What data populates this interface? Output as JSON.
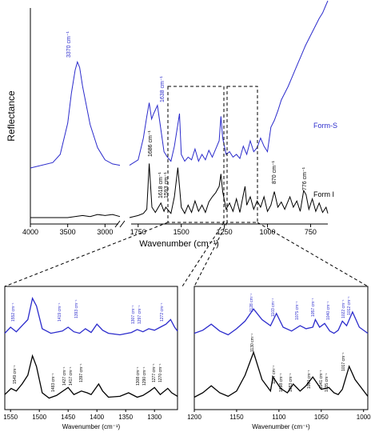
{
  "colors": {
    "form_s": "#2b2bcc",
    "form_i": "#000000",
    "axis": "#000000",
    "dash": "#000000"
  },
  "chart_data": [
    {
      "type": "line",
      "panel": "main",
      "xlabel": "Wavenumber (cm⁻¹)",
      "ylabel": "Reflectance",
      "x_break": [
        2800,
        1800
      ],
      "xticks": [
        "4000",
        "3500",
        "3000",
        "1750",
        "1500",
        "1250",
        "1000",
        "750"
      ],
      "series": [
        {
          "name": "Form-S",
          "color": "#2b2bcc",
          "x": [
            4000,
            3700,
            3600,
            3500,
            3450,
            3400,
            3370,
            3340,
            3300,
            3200,
            3100,
            3000,
            2900,
            2800,
            1800,
            1750,
            1720,
            1700,
            1686,
            1672,
            1660,
            1638,
            1620,
            1600,
            1580,
            1560,
            1540,
            1520,
            1510,
            1500,
            1480,
            1460,
            1440,
            1420,
            1400,
            1380,
            1360,
            1340,
            1320,
            1300,
            1280,
            1270,
            1260,
            1240,
            1220,
            1200,
            1180,
            1160,
            1140,
            1120,
            1100,
            1080,
            1060,
            1040,
            1020,
            1000,
            980,
            960,
            940,
            920,
            900,
            880,
            860,
            840,
            820,
            800,
            780,
            760,
            740,
            720,
            700,
            680,
            660,
            650
          ],
          "y": [
            0.0,
            0.04,
            0.1,
            0.33,
            0.55,
            0.72,
            0.78,
            0.74,
            0.6,
            0.32,
            0.15,
            0.06,
            0.03,
            0.02,
            0.02,
            0.06,
            0.22,
            0.38,
            0.48,
            0.36,
            0.4,
            0.46,
            0.3,
            0.12,
            0.08,
            0.05,
            0.16,
            0.32,
            0.4,
            0.1,
            0.05,
            0.08,
            0.06,
            0.14,
            0.05,
            0.1,
            0.06,
            0.13,
            0.08,
            0.14,
            0.2,
            0.38,
            0.22,
            0.1,
            0.12,
            0.08,
            0.1,
            0.07,
            0.16,
            0.1,
            0.2,
            0.12,
            0.15,
            0.22,
            0.16,
            0.12,
            0.3,
            0.35,
            0.42,
            0.5,
            0.55,
            0.6,
            0.66,
            0.72,
            0.78,
            0.84,
            0.9,
            0.95,
            1.0,
            1.05,
            1.1,
            1.14,
            1.2,
            1.23
          ]
        },
        {
          "name": "Form I",
          "color": "#000000",
          "x": [
            4000,
            3500,
            3300,
            3200,
            3100,
            3000,
            2900,
            2800,
            1800,
            1750,
            1720,
            1700,
            1686,
            1670,
            1650,
            1618,
            1600,
            1590,
            1560,
            1540,
            1520,
            1510,
            1500,
            1480,
            1460,
            1440,
            1420,
            1400,
            1380,
            1360,
            1340,
            1320,
            1300,
            1280,
            1270,
            1260,
            1240,
            1220,
            1200,
            1180,
            1160,
            1140,
            1130,
            1120,
            1100,
            1080,
            1060,
            1040,
            1020,
            1000,
            980,
            960,
            940,
            920,
            900,
            870,
            850,
            830,
            810,
            790,
            776,
            760,
            740,
            720,
            700,
            680,
            660,
            650
          ],
          "y": [
            0.0,
            0.0,
            0.02,
            0.01,
            0.03,
            0.02,
            0.03,
            0.01,
            0.0,
            0.02,
            0.04,
            0.08,
            0.52,
            0.1,
            0.05,
            0.14,
            0.06,
            0.1,
            0.04,
            0.2,
            0.48,
            0.3,
            0.1,
            0.04,
            0.12,
            0.05,
            0.16,
            0.06,
            0.12,
            0.05,
            0.15,
            0.2,
            0.24,
            0.3,
            0.42,
            0.25,
            0.08,
            0.14,
            0.06,
            0.18,
            0.05,
            0.22,
            0.3,
            0.12,
            0.2,
            0.08,
            0.16,
            0.1,
            0.2,
            0.06,
            0.12,
            0.25,
            0.1,
            0.15,
            0.08,
            0.2,
            0.1,
            0.16,
            0.06,
            0.26,
            0.22,
            0.08,
            0.18,
            0.06,
            0.14,
            0.05,
            0.1,
            0.04
          ]
        }
      ],
      "annotations": [
        {
          "text": "3370 cm⁻¹",
          "series": "Form-S"
        },
        {
          "text": "1638 cm⁻¹",
          "series": "Form-S"
        },
        {
          "text": "1686 cm⁻¹",
          "series": "Form I"
        },
        {
          "text": "1618 cm⁻¹",
          "series": "Form I"
        },
        {
          "text": "1593 cm⁻¹",
          "series": "Form I"
        },
        {
          "text": "870 cm⁻¹",
          "series": "Form I"
        },
        {
          "text": "776 cm⁻¹",
          "series": "Form I"
        }
      ]
    },
    {
      "type": "line",
      "panel": "zoom-left",
      "xlabel": "Wavenumber (cm⁻¹)",
      "xlim": [
        1560,
        1260
      ],
      "xticks": [
        1550,
        1500,
        1450,
        1400,
        1350,
        1300
      ],
      "series": [
        {
          "name": "Form-S",
          "color": "#2b2bcc",
          "x": [
            1560,
            1550,
            1540,
            1530,
            1520,
            1512,
            1505,
            1495,
            1480,
            1460,
            1450,
            1440,
            1430,
            1420,
            1410,
            1400,
            1390,
            1380,
            1360,
            1340,
            1330,
            1320,
            1310,
            1300,
            1290,
            1280,
            1272,
            1265,
            1260
          ],
          "y": [
            0.52,
            0.6,
            0.54,
            0.62,
            0.7,
            0.98,
            0.88,
            0.58,
            0.52,
            0.55,
            0.6,
            0.54,
            0.52,
            0.58,
            0.53,
            0.64,
            0.56,
            0.52,
            0.5,
            0.53,
            0.57,
            0.54,
            0.58,
            0.56,
            0.6,
            0.64,
            0.7,
            0.6,
            0.55
          ]
        },
        {
          "name": "Form I",
          "color": "#000000",
          "x": [
            1560,
            1549,
            1540,
            1530,
            1520,
            1512,
            1505,
            1495,
            1483,
            1470,
            1450,
            1440,
            1427,
            1417,
            1410,
            1397,
            1390,
            1380,
            1360,
            1345,
            1330,
            1320,
            1308,
            1300,
            1290,
            1277,
            1270,
            1260
          ],
          "y": [
            0.08,
            0.15,
            0.12,
            0.2,
            0.3,
            0.52,
            0.4,
            0.1,
            0.04,
            0.07,
            0.16,
            0.08,
            0.12,
            0.1,
            0.08,
            0.2,
            0.12,
            0.05,
            0.06,
            0.1,
            0.05,
            0.07,
            0.12,
            0.16,
            0.08,
            0.15,
            0.1,
            0.06
          ]
        }
      ],
      "annotations": [
        {
          "text": "1552 cm⁻¹",
          "series": "Form-S"
        },
        {
          "text": "1419 cm⁻¹",
          "series": "Form-S"
        },
        {
          "text": "1393 cm⁻¹",
          "series": "Form-S"
        },
        {
          "text": "1307 cm⁻¹",
          "series": "Form-S"
        },
        {
          "text": "1297 cm⁻¹",
          "series": "Form-S"
        },
        {
          "text": "1272 cm⁻¹",
          "series": "Form-S"
        },
        {
          "text": "1549 cm⁻¹",
          "series": "Form I"
        },
        {
          "text": "1483 cm⁻¹",
          "series": "Form I"
        },
        {
          "text": "1427 cm⁻¹",
          "series": "Form I"
        },
        {
          "text": "1417 cm⁻¹",
          "series": "Form I"
        },
        {
          "text": "1397 cm⁻¹",
          "series": "Form I"
        },
        {
          "text": "1308 cm⁻¹",
          "series": "Form I"
        },
        {
          "text": "1290 cm⁻¹",
          "series": "Form I"
        },
        {
          "text": "1277 cm⁻¹",
          "series": "Form I"
        },
        {
          "text": "1270 cm⁻¹",
          "series": "Form I"
        }
      ]
    },
    {
      "type": "line",
      "panel": "zoom-right",
      "xlabel": "Wavenumber (cm⁻¹)",
      "xlim": [
        1200,
        995
      ],
      "xticks": [
        1200,
        1150,
        1100,
        1050,
        1000
      ],
      "series": [
        {
          "name": "Form-S",
          "color": "#2b2bcc",
          "x": [
            1200,
            1190,
            1180,
            1170,
            1160,
            1150,
            1140,
            1130,
            1120,
            1110,
            1103,
            1095,
            1085,
            1075,
            1068,
            1060,
            1057,
            1052,
            1046,
            1040,
            1035,
            1030,
            1025,
            1020,
            1013,
            1005,
            995
          ],
          "y": [
            0.52,
            0.56,
            0.64,
            0.55,
            0.5,
            0.58,
            0.68,
            0.84,
            0.7,
            0.62,
            0.78,
            0.6,
            0.55,
            0.62,
            0.58,
            0.6,
            0.7,
            0.6,
            0.65,
            0.55,
            0.52,
            0.56,
            0.68,
            0.62,
            0.8,
            0.6,
            0.52
          ]
        },
        {
          "name": "Form I",
          "color": "#000000",
          "x": [
            1200,
            1190,
            1180,
            1170,
            1160,
            1150,
            1140,
            1130,
            1120,
            1110,
            1107,
            1098,
            1090,
            1083,
            1075,
            1068,
            1060,
            1050,
            1041,
            1035,
            1030,
            1025,
            1017,
            1010,
            995
          ],
          "y": [
            0.05,
            0.1,
            0.18,
            0.1,
            0.06,
            0.12,
            0.3,
            0.56,
            0.25,
            0.12,
            0.28,
            0.15,
            0.1,
            0.2,
            0.12,
            0.18,
            0.28,
            0.14,
            0.16,
            0.1,
            0.08,
            0.14,
            0.4,
            0.25,
            0.06
          ]
        }
      ],
      "annotations": [
        {
          "text": "1128 cm⁻¹",
          "series": "Form-S"
        },
        {
          "text": "1103 cm⁻¹",
          "series": "Form-S"
        },
        {
          "text": "1075 cm⁻¹",
          "series": "Form-S"
        },
        {
          "text": "1057 cm⁻¹",
          "series": "Form-S"
        },
        {
          "text": "1040 cm⁻¹",
          "series": "Form-S"
        },
        {
          "text": "1022 cm⁻¹",
          "series": "Form-S"
        },
        {
          "text": "1012 cm⁻¹",
          "series": "Form-S"
        },
        {
          "text": "1130 cm⁻¹",
          "series": "Form I"
        },
        {
          "text": "1107 cm⁻¹",
          "series": "Form I"
        },
        {
          "text": "1098 cm⁻¹",
          "series": "Form I"
        },
        {
          "text": "1083 cm⁻¹",
          "series": "Form I"
        },
        {
          "text": "1060 cm⁻¹",
          "series": "Form I"
        },
        {
          "text": "1041 cm⁻¹",
          "series": "Form I"
        },
        {
          "text": "1035 cm⁻¹",
          "series": "Form I"
        },
        {
          "text": "1017 cm⁻¹",
          "series": "Form I"
        }
      ]
    }
  ]
}
